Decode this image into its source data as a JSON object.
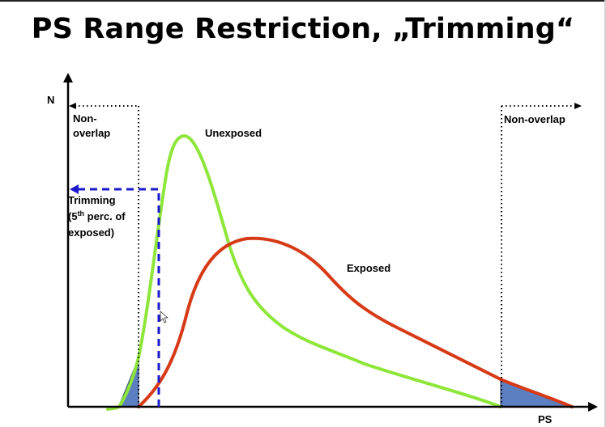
{
  "slide": {
    "title": "PS Range Restriction, „Trimming“"
  },
  "axes": {
    "y_label": "N",
    "x_label": "PS"
  },
  "annotations": {
    "left_region": [
      "Non-",
      "overlap"
    ],
    "right_region": "Non-overlap",
    "trimming": {
      "line1": "Trimming",
      "line2_prefix": "(5",
      "line2_superscript": "th",
      "line2_suffix": " perc. of",
      "line3": "exposed)"
    }
  },
  "curves": {
    "unexposed": {
      "label": "Unexposed",
      "color": "#8ee63a"
    },
    "exposed": {
      "label": "Exposed",
      "color": "#d63a16"
    }
  },
  "colors": {
    "trimming_line": "#1a1acc",
    "overlap_shade": "#5b7fc0",
    "axis": "#000000"
  },
  "icons": {
    "cursor": "mouse-pointer-icon"
  }
}
